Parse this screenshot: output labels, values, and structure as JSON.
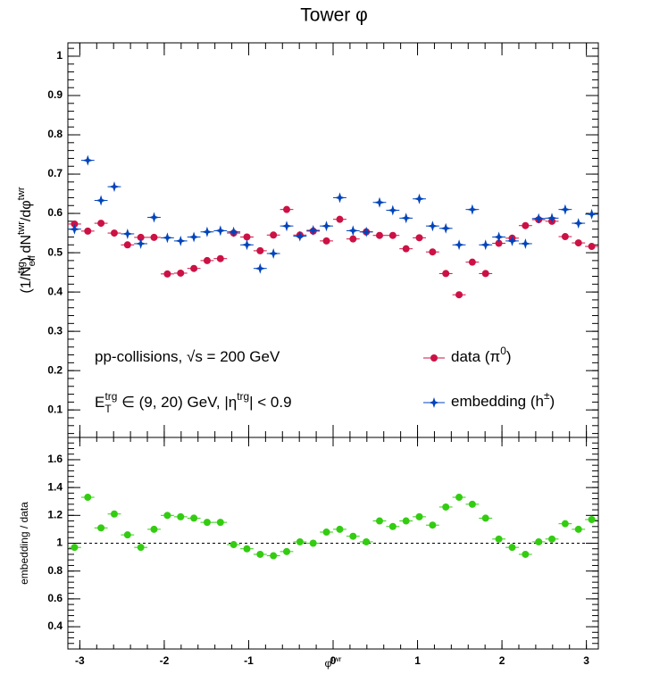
{
  "chart_data": [
    {
      "type": "scatter",
      "title": "Tower φ",
      "y_label": [
        [
          "(1/N",
          "base"
        ],
        [
          "eff",
          "sub"
        ],
        [
          "trg",
          "sup"
        ],
        [
          ") dN",
          "base"
        ],
        [
          "twr",
          "sup"
        ],
        [
          "/dφ",
          "base"
        ],
        [
          "twr",
          "sup"
        ]
      ],
      "annotations": [
        [
          [
            "pp-collisions, √s = 200 GeV",
            "base"
          ]
        ],
        [
          [
            "E",
            "base"
          ],
          [
            "T",
            "sub"
          ],
          [
            "trg",
            "sup"
          ],
          [
            " ∈ (9, 20) GeV, |η",
            "base"
          ],
          [
            "trg",
            "sup"
          ],
          [
            "| < 0.9",
            "base"
          ]
        ]
      ],
      "x": [
        -3.063,
        -2.906,
        -2.749,
        -2.592,
        -2.435,
        -2.278,
        -2.121,
        -1.963,
        -1.806,
        -1.649,
        -1.492,
        -1.335,
        -1.178,
        -1.021,
        -0.864,
        -0.707,
        -0.55,
        -0.393,
        -0.236,
        -0.079,
        0.079,
        0.236,
        0.393,
        0.55,
        0.707,
        0.864,
        1.021,
        1.178,
        1.335,
        1.492,
        1.649,
        1.806,
        1.963,
        2.121,
        2.278,
        2.435,
        2.592,
        2.749,
        2.906,
        3.063
      ],
      "series": [
        {
          "name": [
            [
              "data (π",
              "base"
            ],
            [
              "0",
              "sup"
            ],
            [
              ")",
              "base"
            ]
          ],
          "color": "#cc1144",
          "marker": "circle",
          "values": [
            0.573,
            0.555,
            0.575,
            0.55,
            0.52,
            0.539,
            0.539,
            0.446,
            0.448,
            0.46,
            0.48,
            0.485,
            0.55,
            0.54,
            0.505,
            0.545,
            0.61,
            0.545,
            0.555,
            0.53,
            0.585,
            0.535,
            0.553,
            0.544,
            0.544,
            0.51,
            0.538,
            0.502,
            0.447,
            0.393,
            0.476,
            0.447,
            0.524,
            0.537,
            0.569,
            0.584,
            0.58,
            0.541,
            0.525,
            0.516
          ]
        },
        {
          "name": [
            [
              "embedding (h",
              "base"
            ],
            [
              "±",
              "sup"
            ],
            [
              ")",
              "base"
            ]
          ],
          "color": "#0044bb",
          "marker": "star",
          "values": [
            0.56,
            0.735,
            0.633,
            0.668,
            0.548,
            0.523,
            0.59,
            0.538,
            0.53,
            0.54,
            0.553,
            0.556,
            0.553,
            0.52,
            0.46,
            0.498,
            0.568,
            0.542,
            0.557,
            0.568,
            0.64,
            0.556,
            0.553,
            0.628,
            0.608,
            0.588,
            0.637,
            0.568,
            0.562,
            0.52,
            0.61,
            0.52,
            0.54,
            0.53,
            0.523,
            0.587,
            0.588,
            0.61,
            0.575,
            0.598
          ]
        }
      ],
      "xlim": [
        -3.1416,
        3.1416
      ],
      "ylim": [
        0.03,
        1.034
      ],
      "yticks": [
        0.1,
        0.2,
        0.3,
        0.4,
        0.5,
        0.6,
        0.7,
        0.8,
        0.9,
        1
      ],
      "legend": "right"
    },
    {
      "type": "scatter",
      "y_label": [
        [
          "embedding / data",
          "base"
        ]
      ],
      "x_label": [
        [
          "φ",
          "base"
        ],
        [
          "twr",
          "sup"
        ]
      ],
      "x": [
        -3.063,
        -2.906,
        -2.749,
        -2.592,
        -2.435,
        -2.278,
        -2.121,
        -1.963,
        -1.806,
        -1.649,
        -1.492,
        -1.335,
        -1.178,
        -1.021,
        -0.864,
        -0.707,
        -0.55,
        -0.393,
        -0.236,
        -0.079,
        0.079,
        0.236,
        0.393,
        0.55,
        0.707,
        0.864,
        1.021,
        1.178,
        1.335,
        1.492,
        1.649,
        1.806,
        1.963,
        2.121,
        2.278,
        2.435,
        2.592,
        2.749,
        2.906,
        3.063
      ],
      "series": [
        {
          "color": "#33cc11",
          "marker": "circle",
          "values": [
            0.97,
            1.33,
            1.11,
            1.21,
            1.06,
            0.97,
            1.1,
            1.2,
            1.19,
            1.18,
            1.15,
            1.15,
            0.99,
            0.96,
            0.92,
            0.91,
            0.94,
            1.01,
            1.0,
            1.08,
            1.1,
            1.05,
            1.01,
            1.16,
            1.12,
            1.16,
            1.19,
            1.13,
            1.26,
            1.33,
            1.28,
            1.18,
            1.03,
            0.97,
            0.92,
            1.01,
            1.03,
            1.14,
            1.1,
            1.17
          ]
        }
      ],
      "reference_line": 1,
      "xlim": [
        -3.1416,
        3.1416
      ],
      "xticks": [
        -3,
        -2,
        -1,
        0,
        1,
        2,
        3
      ],
      "ylim": [
        0.24,
        1.76
      ],
      "yticks": [
        0.4,
        0.6,
        0.8,
        1,
        1.2,
        1.4,
        1.6
      ]
    }
  ]
}
